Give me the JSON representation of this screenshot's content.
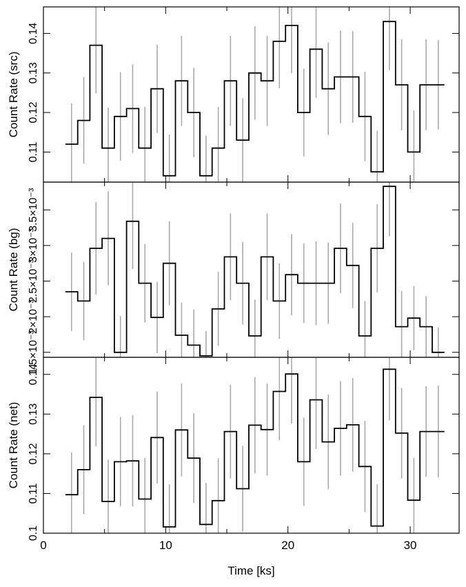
{
  "chart_data": {
    "type": "line",
    "subtype": "step-lightcurve-stacked",
    "xlabel": "Time [ks]",
    "xlim": [
      0,
      34
    ],
    "xticks": [
      0,
      10,
      20,
      30
    ],
    "grid": false,
    "colors": {
      "step": "#000000",
      "errorbars": "#aaaaaa"
    },
    "bin_centers": [
      2.3,
      3.3,
      4.3,
      5.3,
      6.3,
      7.3,
      8.3,
      9.3,
      10.3,
      11.3,
      12.3,
      13.3,
      14.3,
      15.3,
      16.3,
      17.3,
      18.3,
      19.3,
      20.3,
      21.3,
      22.3,
      23.3,
      24.3,
      25.3,
      26.3,
      27.3,
      28.3,
      29.3,
      30.3,
      31.3,
      32.3
    ],
    "panels": [
      {
        "ylabel": "Count Rate (src)",
        "ylim": [
          0.1024,
          0.1467
        ],
        "yticks": [
          0.11,
          0.12,
          0.13,
          0.14
        ],
        "yticklabels": [
          "0.11",
          "0.12",
          "0.13",
          "0.14"
        ],
        "values": [
          0.112,
          0.118,
          0.137,
          0.111,
          0.119,
          0.121,
          0.111,
          0.126,
          0.104,
          0.128,
          0.12,
          0.104,
          0.111,
          0.128,
          0.113,
          0.13,
          0.128,
          0.138,
          0.142,
          0.12,
          0.136,
          0.126,
          0.129,
          0.129,
          0.119,
          0.105,
          0.143,
          0.127,
          0.11,
          0.127,
          0.127
        ],
        "errors": [
          0.0103,
          0.011,
          0.0122,
          0.0102,
          0.0112,
          0.0112,
          0.0104,
          0.0112,
          0.0104,
          0.0114,
          0.0113,
          0.0101,
          0.0104,
          0.0114,
          0.0106,
          0.0118,
          0.0114,
          0.0119,
          0.0121,
          0.0111,
          0.0123,
          0.0117,
          0.0117,
          0.0116,
          0.0113,
          0.0104,
          0.0123,
          0.0115,
          0.0105,
          0.0115,
          0.0113
        ]
      },
      {
        "ylabel": "Count Rate (bg)",
        "ylim": [
          0.00143,
          0.00389
        ],
        "yticks": [
          0.0015,
          0.002,
          0.0025,
          0.003,
          0.0035
        ],
        "yticklabels": [
          "1.5×10⁻³",
          "2×10⁻³",
          "2.5×10⁻³",
          "3×10⁻³",
          "3.5×10⁻³"
        ],
        "values": [
          0.00235,
          0.00222,
          0.00296,
          0.0031,
          0.0015,
          0.00334,
          0.00247,
          0.00199,
          0.00275,
          0.00174,
          0.0016,
          0.00145,
          0.00211,
          0.00284,
          0.00247,
          0.00173,
          0.00284,
          0.00222,
          0.00259,
          0.00247,
          0.00247,
          0.00247,
          0.00296,
          0.00272,
          0.00173,
          0.00296,
          0.00383,
          0.00186,
          0.00198,
          0.00186,
          0.0015
        ],
        "errors": [
          0.00055,
          0.00055,
          0.00065,
          0.00066,
          0.00051,
          0.00067,
          0.00055,
          0.0005,
          0.00059,
          0.00046,
          0.0005,
          0.00035,
          0.00052,
          0.00061,
          0.00058,
          0.00051,
          0.00061,
          0.00053,
          0.00057,
          0.00056,
          0.00059,
          0.00057,
          0.00063,
          0.0006,
          0.00049,
          0.00062,
          0.0007,
          0.0005,
          0.00045,
          0.00043,
          0.00035
        ]
      },
      {
        "ylabel": "Count Rate (net)",
        "ylim": [
          0.1,
          0.1443
        ],
        "yticks": [
          0.1,
          0.11,
          0.12,
          0.13,
          0.14
        ],
        "yticklabels": [
          "0.1",
          "0.11",
          "0.12",
          "0.13",
          "0.14"
        ],
        "values": [
          0.1097,
          0.116,
          0.1342,
          0.108,
          0.118,
          0.1182,
          0.1086,
          0.1241,
          0.1016,
          0.126,
          0.1189,
          0.1022,
          0.1082,
          0.1256,
          0.1112,
          0.1272,
          0.1261,
          0.1357,
          0.1401,
          0.118,
          0.1336,
          0.123,
          0.1264,
          0.1273,
          0.1168,
          0.1018,
          0.1413,
          0.1252,
          0.1083,
          0.1256,
          0.1256
        ],
        "errors": [
          0.0107,
          0.0112,
          0.0124,
          0.0105,
          0.0113,
          0.0115,
          0.0104,
          0.0116,
          0.0107,
          0.0117,
          0.0113,
          0.0105,
          0.0107,
          0.0118,
          0.0108,
          0.0121,
          0.0116,
          0.0123,
          0.0125,
          0.0111,
          0.0124,
          0.0119,
          0.0119,
          0.0118,
          0.0115,
          0.0105,
          0.0128,
          0.0114,
          0.0107,
          0.0114,
          0.0116
        ]
      }
    ]
  }
}
